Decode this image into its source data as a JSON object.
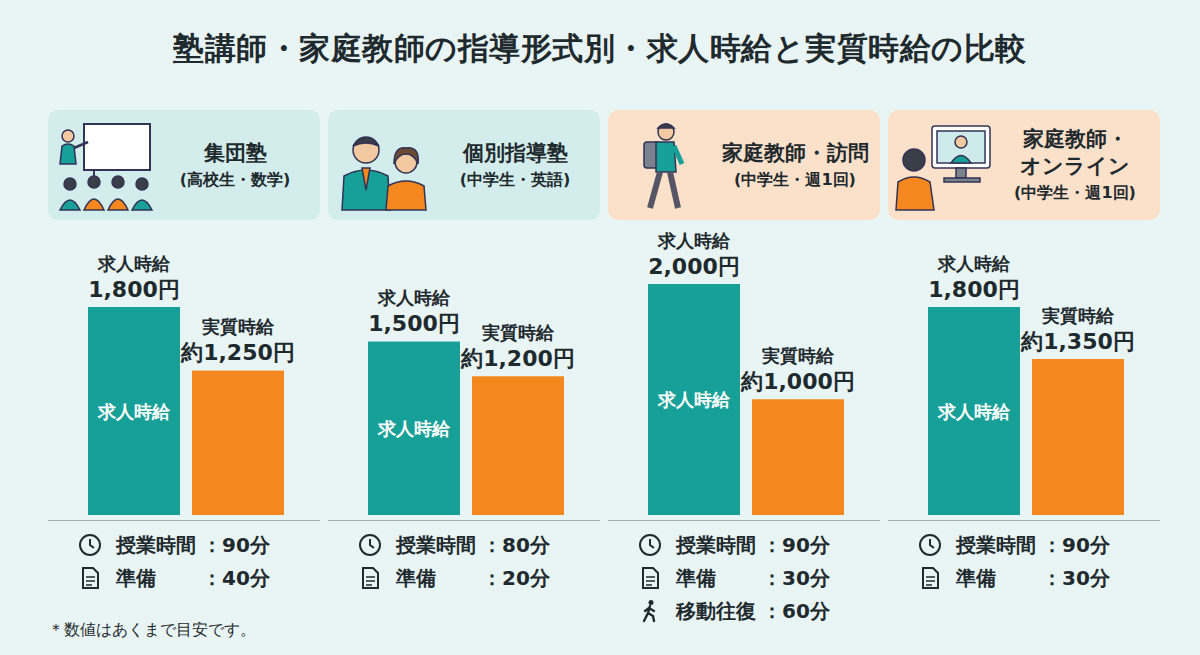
{
  "title": "塾講師・家庭教師の指導形式別・求人時給と実質時給の比較",
  "footnote": "＊数値はあくまで目安です。",
  "chart_data": [
    {
      "type": "bar",
      "title": "集団塾",
      "subtitle": "(高校生・数学)",
      "categories": [
        "求人時給",
        "実質時給"
      ],
      "values": [
        1800,
        1250
      ],
      "value_labels": [
        "1,800円",
        "約1,250円"
      ],
      "inner_labels": [
        "求人時給",
        null
      ],
      "colors": [
        "#17a098",
        "#f5871f"
      ],
      "ylim": [
        0,
        2000
      ],
      "tick_labels": false,
      "grid": false,
      "data_labels": true,
      "details": [
        {
          "label": "授業時間",
          "text": "：90分"
        },
        {
          "label": "準備",
          "text": "：40分"
        }
      ]
    },
    {
      "type": "bar",
      "title": "個別指導塾",
      "subtitle": "(中学生・英語)",
      "categories": [
        "求人時給",
        "実質時給"
      ],
      "values": [
        1500,
        1200
      ],
      "value_labels": [
        "1,500円",
        "約1,200円"
      ],
      "inner_labels": [
        "求人時給",
        null
      ],
      "colors": [
        "#17a098",
        "#f5871f"
      ],
      "ylim": [
        0,
        2000
      ],
      "tick_labels": false,
      "grid": false,
      "data_labels": true,
      "details": [
        {
          "label": "授業時間",
          "text": "：80分"
        },
        {
          "label": "準備",
          "text": "：20分"
        }
      ]
    },
    {
      "type": "bar",
      "title": "家庭教師・訪問",
      "subtitle": "(中学生・週1回)",
      "categories": [
        "求人時給",
        "実質時給"
      ],
      "values": [
        2000,
        1000
      ],
      "value_labels": [
        "2,000円",
        "約1,000円"
      ],
      "inner_labels": [
        "求人時給",
        null
      ],
      "colors": [
        "#17a098",
        "#f5871f"
      ],
      "ylim": [
        0,
        2000
      ],
      "tick_labels": false,
      "grid": false,
      "data_labels": true,
      "details": [
        {
          "label": "授業時間",
          "text": "：90分"
        },
        {
          "label": "準備",
          "text": "：30分"
        },
        {
          "label": "移動往復",
          "text": "：60分"
        }
      ]
    },
    {
      "type": "bar",
      "title": "家庭教師・オンライン",
      "subtitle": "(中学生・週1回)",
      "categories": [
        "求人時給",
        "実質時給"
      ],
      "values": [
        1800,
        1350
      ],
      "value_labels": [
        "1,800円",
        "約1,350円"
      ],
      "inner_labels": [
        "求人時給",
        null
      ],
      "colors": [
        "#17a098",
        "#f5871f"
      ],
      "ylim": [
        0,
        2000
      ],
      "tick_labels": false,
      "grid": false,
      "data_labels": true,
      "details": [
        {
          "label": "授業時間",
          "text": "：90分"
        },
        {
          "label": "準備",
          "text": "：30分"
        }
      ]
    }
  ]
}
